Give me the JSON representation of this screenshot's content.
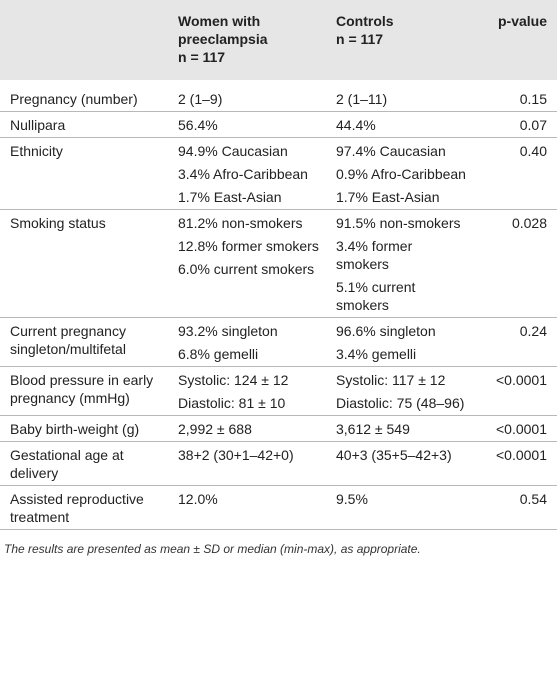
{
  "table": {
    "header": [
      {
        "title": "",
        "sub": ""
      },
      {
        "title": "Women with preeclampsia",
        "sub": "n = 117"
      },
      {
        "title": "Controls",
        "sub": "n = 117"
      },
      {
        "title": "p-value",
        "sub": ""
      }
    ],
    "rows": [
      [
        [
          "Pregnancy (number)"
        ],
        [
          "2 (1–9)"
        ],
        [
          "2 (1–11)"
        ],
        [
          "0.15"
        ]
      ],
      [
        [
          "Nullipara"
        ],
        [
          "56.4%"
        ],
        [
          "44.4%"
        ],
        [
          "0.07"
        ]
      ],
      [
        [
          "Ethnicity"
        ],
        [
          "94.9% Caucasian",
          "3.4% Afro-Caribbean",
          "1.7% East-Asian"
        ],
        [
          "97.4% Caucasian",
          "0.9% Afro-Caribbean",
          "1.7% East-Asian"
        ],
        [
          "0.40"
        ]
      ],
      [
        [
          "Smoking status"
        ],
        [
          "81.2% non-smokers",
          "12.8% former smokers",
          "6.0% current smokers"
        ],
        [
          "91.5% non-smokers",
          "3.4% former smokers",
          "5.1% current smokers"
        ],
        [
          "0.028"
        ]
      ],
      [
        [
          "Current pregnancy singleton/multifetal"
        ],
        [
          "93.2% singleton",
          "6.8% gemelli"
        ],
        [
          "96.6% singleton",
          "3.4% gemelli"
        ],
        [
          "0.24"
        ]
      ],
      [
        [
          "Blood pressure in early pregnancy (mmHg)"
        ],
        [
          "Systolic: 124 ± 12",
          "Diastolic: 81 ± 10"
        ],
        [
          "Systolic: 117 ± 12",
          "Diastolic: 75 (48–96)"
        ],
        [
          "<0.0001"
        ]
      ],
      [
        [
          "Baby birth-weight (g)"
        ],
        [
          "2,992 ± 688"
        ],
        [
          "3,612 ± 549"
        ],
        [
          "<0.0001"
        ]
      ],
      [
        [
          "Gestational age at delivery"
        ],
        [
          "38+2 (30+1–42+0)"
        ],
        [
          "40+3 (35+5–42+3)"
        ],
        [
          "<0.0001"
        ]
      ],
      [
        [
          "Assisted reproductive treatment"
        ],
        [
          "12.0%"
        ],
        [
          "9.5%"
        ],
        [
          "0.54"
        ]
      ]
    ],
    "note": "The results are presented as mean ± SD or median (min-max), as appropriate."
  }
}
